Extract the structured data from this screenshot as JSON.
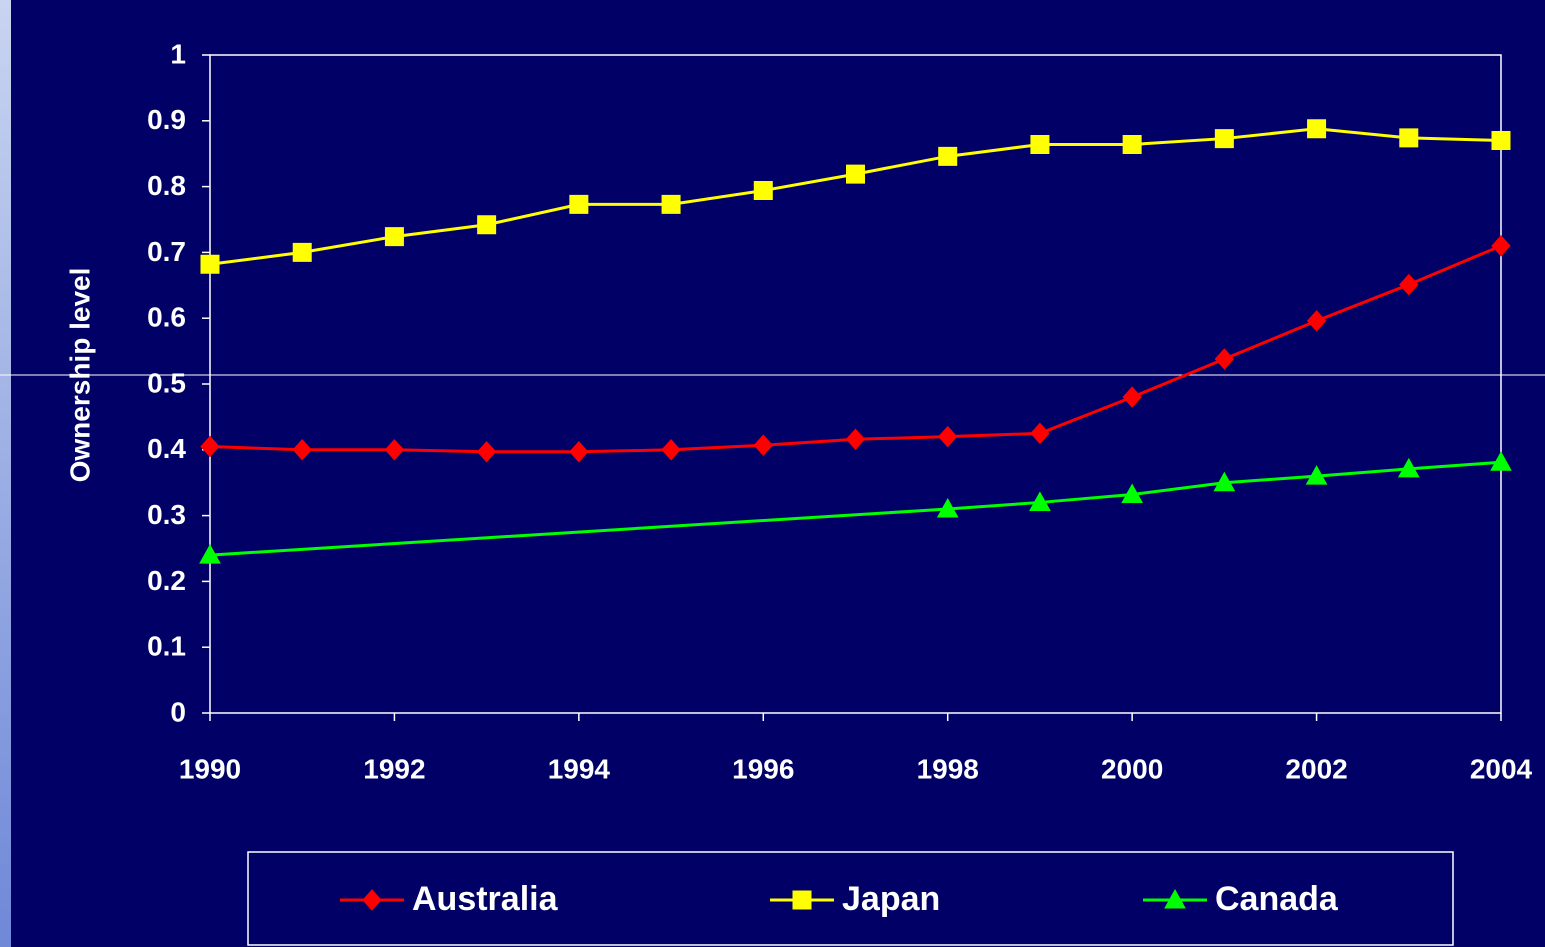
{
  "chart_data": {
    "type": "line",
    "y_label": "Ownership level",
    "x": [
      1990,
      1991,
      1992,
      1993,
      1994,
      1995,
      1996,
      1997,
      1998,
      1999,
      2000,
      2001,
      2002,
      2003,
      2004
    ],
    "xlim": [
      1990,
      2004
    ],
    "xticks": [
      1990,
      1992,
      1994,
      1996,
      1998,
      2000,
      2002,
      2004
    ],
    "ylim": [
      0,
      1
    ],
    "yticks": [
      0,
      0.1,
      0.2,
      0.3,
      0.4,
      0.5,
      0.6,
      0.7,
      0.8,
      0.9,
      1
    ],
    "legend": "bottom",
    "series": [
      {
        "name": "Australia",
        "color": "#ff0000",
        "marker": "diamond",
        "values": [
          0.405,
          0.4,
          0.4,
          0.397,
          0.397,
          0.4,
          0.407,
          0.416,
          0.42,
          0.425,
          0.48,
          0.538,
          0.596,
          0.651,
          0.71
        ]
      },
      {
        "name": "Japan",
        "color": "#ffff00",
        "marker": "square",
        "values": [
          0.682,
          0.7,
          0.724,
          0.742,
          0.773,
          0.773,
          0.794,
          0.819,
          0.846,
          0.864,
          0.864,
          0.873,
          0.888,
          0.874,
          0.87
        ]
      },
      {
        "name": "Canada",
        "color": "#00ff00",
        "marker": "triangle",
        "x": [
          1990,
          1998,
          1999,
          2000,
          2001,
          2002,
          2003,
          2004
        ],
        "values": [
          0.24,
          0.31,
          0.32,
          0.332,
          0.35,
          0.36,
          0.371,
          0.381
        ]
      }
    ]
  }
}
